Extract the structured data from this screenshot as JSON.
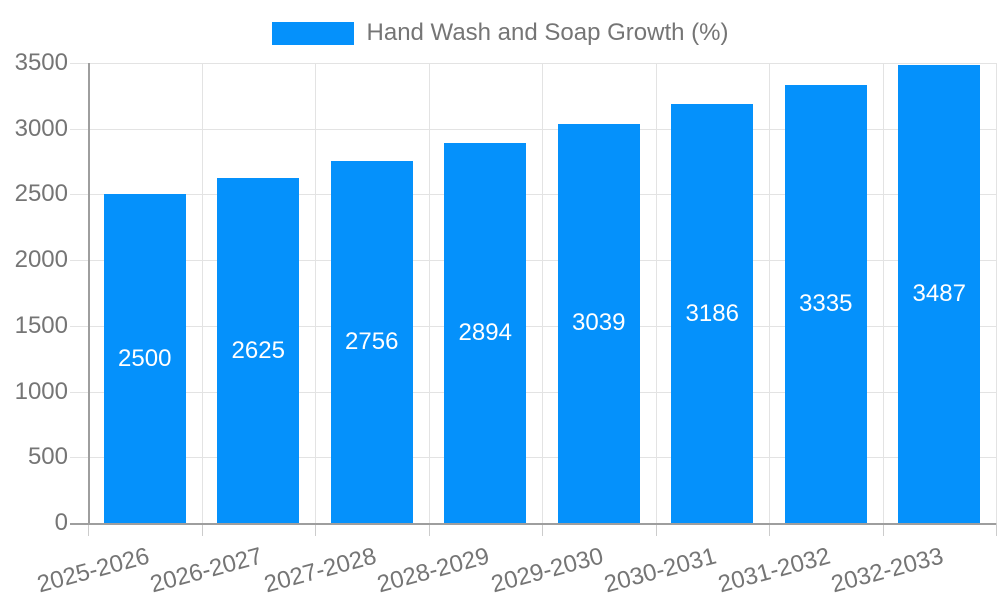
{
  "legend": {
    "label": "Hand Wash and Soap Growth (%)"
  },
  "chart_data": {
    "type": "bar",
    "title": "Hand Wash and Soap Growth (%)",
    "categories": [
      "2025-2026",
      "2026-2027",
      "2027-2028",
      "2028-2029",
      "2029-2030",
      "2030-2031",
      "2031-2032",
      "2032-2033"
    ],
    "values": [
      2500,
      2625,
      2756,
      2894,
      3039,
      3186,
      3335,
      3487
    ],
    "value_labels": [
      "2500",
      "2625",
      "2756",
      "2894",
      "3039",
      "3186",
      "3335",
      "3487"
    ],
    "y_ticks": [
      0,
      500,
      1000,
      1500,
      2000,
      2500,
      3000,
      3500
    ],
    "ylim": [
      0,
      3500
    ],
    "xlabel": "",
    "ylabel": "",
    "grid": true,
    "legend_position": "top-center",
    "x_label_rotation_deg": -15,
    "colors": {
      "bar": "#0591fb",
      "value_label": "#ffffff",
      "axis_text": "#757575",
      "grid": "#e3e3e3",
      "axis_line": "#9e9e9e",
      "background": "#ffffff"
    }
  }
}
